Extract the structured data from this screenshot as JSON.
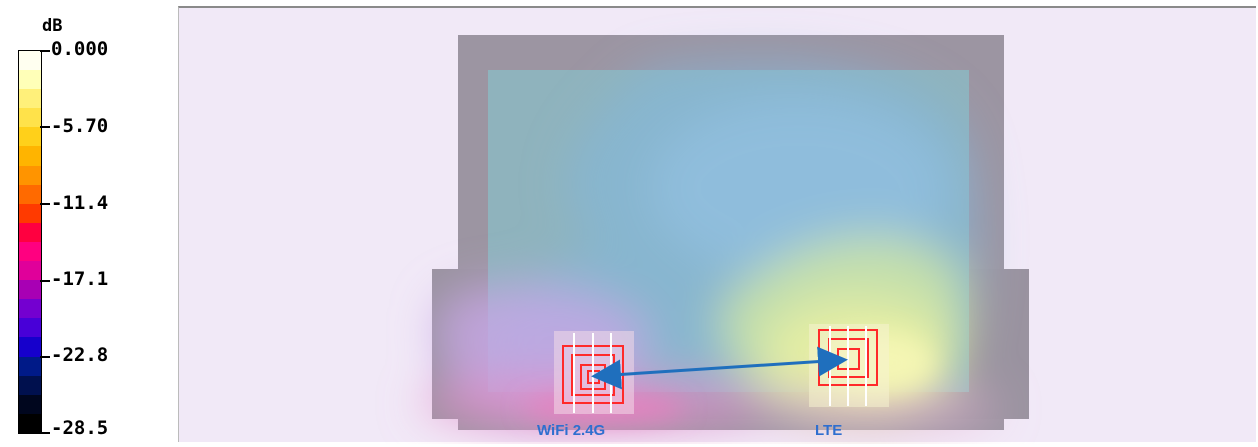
{
  "legend": {
    "unit": "dB",
    "labels": [
      "0.000",
      "-5.70",
      "-11.4",
      "-17.1",
      "-22.8",
      "-28.5"
    ],
    "colors": [
      "#fffff0",
      "#ffffb8",
      "#fff07a",
      "#ffe24a",
      "#ffd01a",
      "#ffb400",
      "#ff9400",
      "#ff6a00",
      "#ff3a00",
      "#ff0040",
      "#ff0080",
      "#e0009a",
      "#a800b4",
      "#7400d0",
      "#4800d8",
      "#1600cc",
      "#001a88",
      "#00104e",
      "#00061e",
      "#000000"
    ]
  },
  "plot": {
    "antennas": [
      "WiFi 2.4G",
      "LTE"
    ],
    "arrow_color": "#1f6fbd",
    "label_color": "#2f6fcf"
  }
}
